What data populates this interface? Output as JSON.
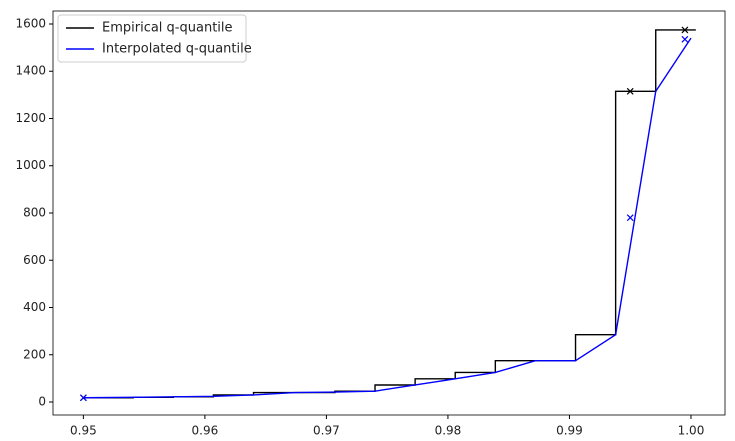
{
  "chart_data": {
    "type": "line",
    "xlim": [
      0.9475,
      1.0028
    ],
    "ylim": [
      -55,
      1655
    ],
    "xticks": [
      0.95,
      0.96,
      0.97,
      0.98,
      0.99,
      {
        "value": 1,
        "label": "1.00"
      }
    ],
    "yticks": [
      0,
      200,
      400,
      600,
      800,
      1000,
      1200,
      1400,
      1600
    ],
    "grid": false,
    "legend": "upper left",
    "series": [
      {
        "name": "Empirical q-quantile",
        "color": "#000000",
        "style": "step",
        "x": [
          0.95,
          0.9541,
          0.9574,
          0.9607,
          0.964,
          0.9674,
          0.9707,
          0.974,
          0.9773,
          0.9806,
          0.9839,
          0.9872,
          0.9905,
          0.9938,
          0.9971,
          1.0004
        ],
        "values": [
          18,
          20,
          22,
          30,
          40,
          40,
          46,
          72,
          98,
          125,
          175,
          175,
          285,
          1315,
          1575,
          1575
        ]
      },
      {
        "name": "Interpolated q-quantile",
        "color": "#0000ff",
        "style": "line",
        "x": [
          0.95,
          0.9541,
          0.9574,
          0.9607,
          0.964,
          0.9674,
          0.9707,
          0.974,
          0.9773,
          0.9806,
          0.9839,
          0.9872,
          0.9905,
          0.9938,
          0.9971,
          1.0
        ],
        "values": [
          18,
          20,
          22,
          24,
          30,
          40,
          42,
          46,
          72,
          98,
          125,
          175,
          175,
          285,
          1315,
          1540
        ]
      },
      {
        "color": "#000000",
        "style": "markers",
        "x": [
          0.95,
          0.995,
          0.9995
        ],
        "values": [
          18,
          1315,
          1575
        ]
      },
      {
        "color": "#0000ff",
        "style": "markers",
        "x": [
          0.95,
          0.995,
          0.9995
        ],
        "values": [
          18,
          780,
          1535
        ]
      }
    ]
  }
}
